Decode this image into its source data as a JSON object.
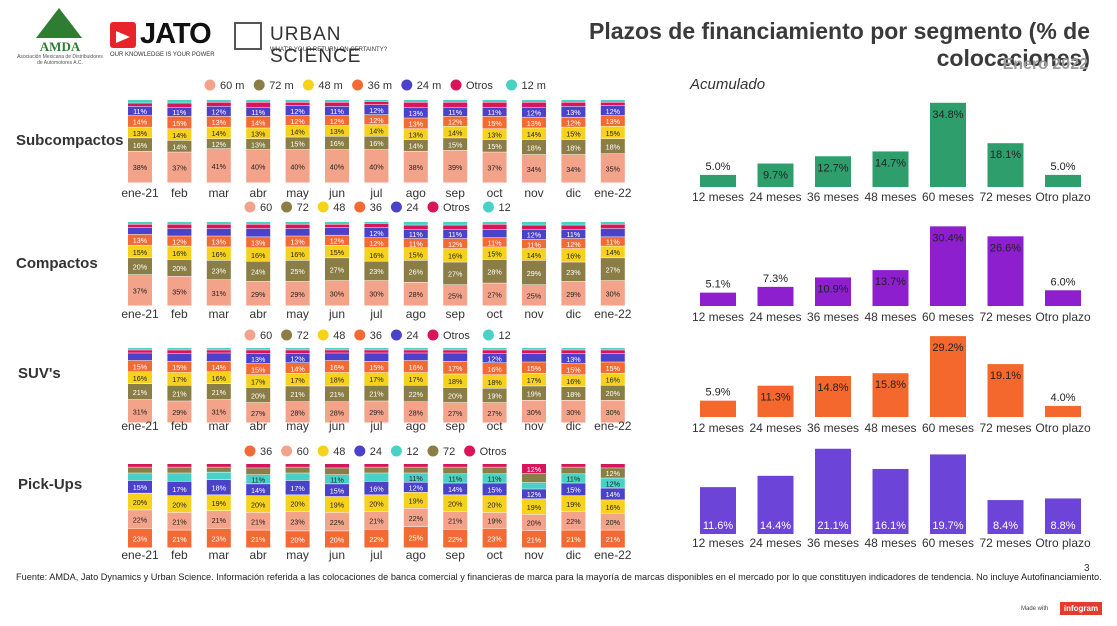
{
  "header": {
    "title": "Plazos de financiamiento por segmento (% de colocaciones)",
    "month": "Enero 2022",
    "acumulado": "Acumulado",
    "page_number": "3"
  },
  "logos": {
    "amda_name": "AMDA",
    "amda_sub": "Asociación Mexicana de Distribuidores de Automotores A.C.",
    "jato_name": "JATO",
    "jato_tag": "OUR KNOWLEDGE IS YOUR POWER",
    "urban_name": "URBAN SCIENCE",
    "urban_tag": "WHAT'S YOUR RETURN ON CERTAINTY?"
  },
  "footer": {
    "note": "Fuente: AMDA, Jato Dynamics y Urban Science. Información referida a las colocaciones de banca comercial y financieras de marca para la mayoría de marcas disponibles en el mercado por lo que constituyen indicadores de tendencia. No incluye Autofinanciamiento.",
    "made_with": "Made with",
    "brand": "infogram"
  },
  "colors": {
    "60": "#f2a38a",
    "72": "#8a7d45",
    "48": "#f7d21c",
    "36": "#f26b35",
    "24": "#4a43c9",
    "Otros": "#d8145a",
    "12": "#49d1c6",
    "sub_bar": "#2e9e6c",
    "comp_bar": "#8d1fcf",
    "suv_bar": "#f4682d",
    "pick_bar": "#6c45d8"
  },
  "chart_data": [
    {
      "type": "bar",
      "stacked": true,
      "segment": "Subcompactos",
      "categories": [
        "ene-21",
        "feb",
        "mar",
        "abr",
        "may",
        "jun",
        "jul",
        "ago",
        "sep",
        "oct",
        "nov",
        "dic",
        "ene-22"
      ],
      "legend": [
        "60 m",
        "72 m",
        "48 m",
        "36 m",
        "24 m",
        "Otros",
        "12 m"
      ],
      "series": [
        {
          "name": "60",
          "values": [
            38,
            37,
            41,
            40,
            40,
            40,
            40,
            38,
            39,
            37,
            34,
            34,
            35
          ]
        },
        {
          "name": "72",
          "values": [
            16,
            14,
            12,
            13,
            15,
            16,
            16,
            14,
            15,
            15,
            18,
            18,
            18
          ]
        },
        {
          "name": "48",
          "values": [
            13,
            14,
            14,
            13,
            14,
            13,
            14,
            13,
            14,
            13,
            14,
            15,
            15
          ]
        },
        {
          "name": "36",
          "values": [
            14,
            15,
            13,
            14,
            12,
            12,
            12,
            13,
            12,
            15,
            13,
            12,
            13
          ]
        },
        {
          "name": "24",
          "values": [
            11,
            11,
            12,
            11,
            12,
            11,
            12,
            13,
            11,
            11,
            12,
            13,
            12
          ]
        },
        {
          "name": "Otros",
          "values": [
            4,
            5,
            5,
            6,
            4,
            5,
            4,
            6,
            6,
            6,
            6,
            5,
            4
          ]
        },
        {
          "name": "12",
          "values": [
            4,
            4,
            3,
            3,
            3,
            3,
            2,
            3,
            3,
            3,
            3,
            3,
            3
          ]
        }
      ],
      "ylim": [
        0,
        100
      ]
    },
    {
      "type": "bar",
      "stacked": true,
      "segment": "Compactos",
      "categories": [
        "ene-21",
        "feb",
        "mar",
        "abr",
        "may",
        "jun",
        "jul",
        "ago",
        "sep",
        "oct",
        "nov",
        "dic",
        "ene-22"
      ],
      "legend": [
        "60",
        "72",
        "48",
        "36",
        "24",
        "Otros",
        "12"
      ],
      "series": [
        {
          "name": "60",
          "values": [
            37,
            35,
            31,
            29,
            29,
            30,
            30,
            28,
            25,
            27,
            25,
            29,
            30
          ]
        },
        {
          "name": "72",
          "values": [
            20,
            20,
            23,
            24,
            25,
            27,
            23,
            26,
            27,
            28,
            29,
            23,
            27
          ]
        },
        {
          "name": "48",
          "values": [
            15,
            16,
            16,
            16,
            16,
            15,
            16,
            15,
            16,
            15,
            14,
            16,
            14
          ]
        },
        {
          "name": "36",
          "values": [
            13,
            12,
            13,
            13,
            13,
            12,
            12,
            11,
            12,
            11,
            11,
            12,
            11
          ]
        },
        {
          "name": "24",
          "values": [
            8,
            9,
            9,
            10,
            9,
            9,
            12,
            11,
            11,
            10,
            12,
            11,
            10
          ]
        },
        {
          "name": "Otros",
          "values": [
            4,
            5,
            5,
            5,
            5,
            4,
            5,
            5,
            5,
            6,
            5,
            5,
            5
          ]
        },
        {
          "name": "12",
          "values": [
            3,
            3,
            3,
            3,
            3,
            3,
            2,
            4,
            4,
            3,
            4,
            4,
            3
          ]
        }
      ],
      "ylim": [
        0,
        100
      ]
    },
    {
      "type": "bar",
      "stacked": true,
      "segment": "SUV's",
      "categories": [
        "ene-21",
        "feb",
        "mar",
        "abr",
        "may",
        "jun",
        "jul",
        "ago",
        "sep",
        "oct",
        "nov",
        "dic",
        "ene-22"
      ],
      "legend": [
        "60",
        "72",
        "48",
        "36",
        "24",
        "Otros",
        "12"
      ],
      "series": [
        {
          "name": "60",
          "values": [
            31,
            29,
            31,
            27,
            28,
            28,
            29,
            28,
            27,
            27,
            30,
            30,
            30
          ]
        },
        {
          "name": "72",
          "values": [
            21,
            21,
            21,
            20,
            21,
            21,
            21,
            22,
            20,
            19,
            19,
            18,
            20
          ]
        },
        {
          "name": "48",
          "values": [
            16,
            17,
            16,
            17,
            17,
            18,
            17,
            17,
            18,
            18,
            17,
            16,
            16
          ]
        },
        {
          "name": "36",
          "values": [
            15,
            15,
            14,
            15,
            14,
            16,
            15,
            16,
            17,
            16,
            15,
            15,
            15
          ]
        },
        {
          "name": "24",
          "values": [
            10,
            10,
            11,
            13,
            12,
            10,
            11,
            10,
            11,
            12,
            11,
            13,
            11
          ]
        },
        {
          "name": "Otros",
          "values": [
            4,
            5,
            4,
            5,
            5,
            4,
            4,
            4,
            4,
            5,
            5,
            5,
            5
          ]
        },
        {
          "name": "12",
          "values": [
            3,
            3,
            3,
            3,
            3,
            3,
            3,
            3,
            3,
            3,
            3,
            3,
            3
          ]
        }
      ],
      "ylim": [
        0,
        100
      ]
    },
    {
      "type": "bar",
      "stacked": true,
      "segment": "Pick-Ups",
      "categories": [
        "ene-21",
        "feb",
        "mar",
        "abr",
        "may",
        "jun",
        "jul",
        "ago",
        "sep",
        "oct",
        "nov",
        "dic",
        "ene-22"
      ],
      "legend": [
        "36",
        "60",
        "48",
        "24",
        "12",
        "72",
        "Otros"
      ],
      "series": [
        {
          "name": "36",
          "values": [
            23,
            21,
            23,
            21,
            20,
            20,
            22,
            25,
            22,
            23,
            21,
            21,
            21
          ]
        },
        {
          "name": "60",
          "values": [
            22,
            21,
            21,
            21,
            23,
            22,
            21,
            22,
            21,
            19,
            20,
            22,
            20
          ]
        },
        {
          "name": "48",
          "values": [
            20,
            20,
            19,
            20,
            20,
            19,
            20,
            19,
            20,
            20,
            19,
            19,
            16
          ]
        },
        {
          "name": "24",
          "values": [
            15,
            17,
            18,
            14,
            17,
            15,
            16,
            12,
            14,
            15,
            12,
            15,
            14
          ]
        },
        {
          "name": "12",
          "values": [
            9,
            10,
            9,
            11,
            9,
            11,
            10,
            11,
            11,
            11,
            8,
            11,
            12
          ]
        },
        {
          "name": "72",
          "values": [
            7,
            7,
            6,
            8,
            7,
            8,
            7,
            7,
            8,
            8,
            11,
            8,
            12
          ]
        },
        {
          "name": "Otros",
          "values": [
            4,
            4,
            4,
            5,
            4,
            5,
            4,
            4,
            4,
            4,
            12,
            4,
            5
          ]
        }
      ],
      "ylim": [
        0,
        100
      ]
    },
    {
      "type": "bar",
      "segment": "Subcompactos",
      "title": "Acumulado",
      "categories": [
        "12 meses",
        "24 meses",
        "36 meses",
        "48 meses",
        "60 meses",
        "72 meses",
        "Otro plazo"
      ],
      "values": [
        5.0,
        9.7,
        12.7,
        14.7,
        34.8,
        18.1,
        5.0
      ],
      "labels": [
        "5.0%",
        "9.7%",
        "12.7%",
        "14.7%",
        "34.8%",
        "18.1%",
        "5.0%"
      ]
    },
    {
      "type": "bar",
      "segment": "Compactos",
      "categories": [
        "12 meses",
        "24 meses",
        "36 meses",
        "48 meses",
        "60 meses",
        "72 meses",
        "Otro plazo"
      ],
      "values": [
        5.1,
        7.3,
        10.9,
        13.7,
        30.4,
        26.6,
        6.0
      ],
      "labels": [
        "5.1%",
        "7.3%",
        "10.9%",
        "13.7%",
        "30.4%",
        "26.6%",
        "6.0%"
      ]
    },
    {
      "type": "bar",
      "segment": "SUV's",
      "categories": [
        "12 meses",
        "24 meses",
        "36 meses",
        "48 meses",
        "60 meses",
        "72 meses",
        "Otro plazo"
      ],
      "values": [
        5.9,
        11.3,
        14.8,
        15.8,
        29.2,
        19.1,
        4.0
      ],
      "labels": [
        "5.9%",
        "11.3%",
        "14.8%",
        "15.8%",
        "29.2%",
        "19.1%",
        "4.0%"
      ]
    },
    {
      "type": "bar",
      "segment": "Pick-Ups",
      "categories": [
        "12 meses",
        "24 meses",
        "36 meses",
        "48 meses",
        "60 meses",
        "72 meses",
        "Otro plazo"
      ],
      "values": [
        11.6,
        14.4,
        21.1,
        16.1,
        19.7,
        8.4,
        8.8
      ],
      "labels": [
        "11.6%",
        "14.4%",
        "21.1%",
        "16.1%",
        "19.7%",
        "8.4%",
        "8.8%"
      ]
    }
  ]
}
